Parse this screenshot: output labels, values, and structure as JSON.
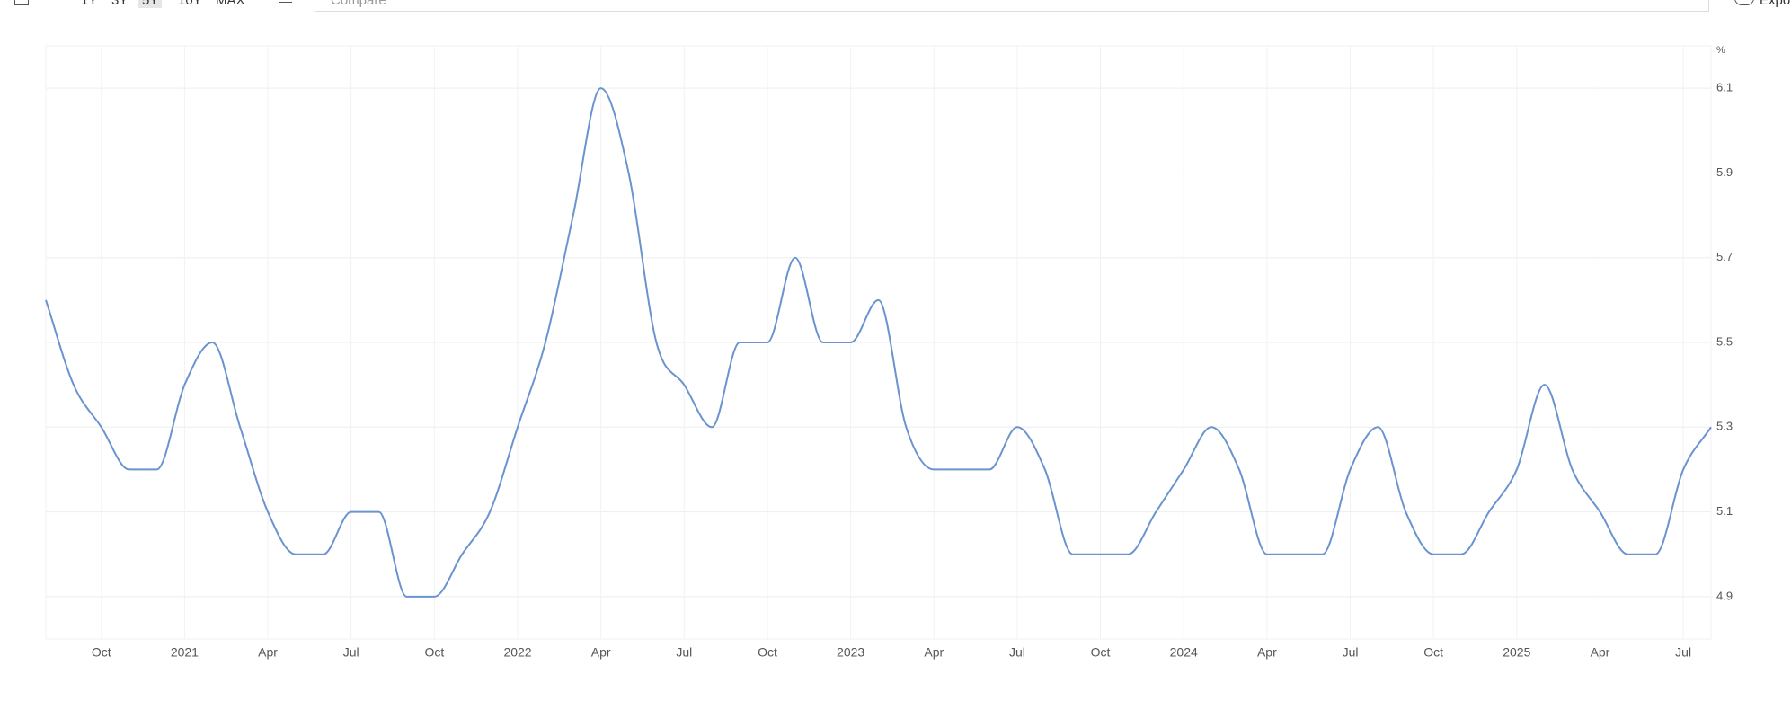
{
  "toolbar": {
    "ranges": [
      "1Y",
      "3Y",
      "5Y",
      "10Y",
      "MAX"
    ],
    "compare": "Compare",
    "export": "Export"
  },
  "chart_data": {
    "type": "line",
    "y_unit": "%",
    "categories": [
      null,
      null,
      "Oct",
      null,
      null,
      "2021",
      null,
      null,
      "Apr",
      null,
      null,
      "Jul",
      null,
      null,
      "Oct",
      null,
      null,
      "2022",
      null,
      null,
      "Apr",
      null,
      null,
      "Jul",
      null,
      null,
      "Oct",
      null,
      null,
      "2023",
      null,
      null,
      "Apr",
      null,
      null,
      "Jul",
      null,
      null,
      "Oct",
      null,
      null,
      "2024",
      null,
      null,
      "Apr",
      null,
      null,
      "Jul",
      null,
      null,
      "Oct",
      null,
      null,
      "2025",
      null,
      null,
      "Apr",
      null,
      null,
      "Jul",
      null
    ],
    "series": [
      {
        "color": "#6a93cf",
        "values": [
          5.6,
          5.4,
          5.3,
          5.2,
          5.2,
          5.4,
          5.5,
          5.3,
          5.1,
          5.0,
          5.0,
          5.1,
          5.1,
          4.9,
          4.9,
          5.0,
          5.1,
          5.3,
          5.5,
          5.8,
          6.1,
          5.9,
          5.5,
          5.4,
          5.3,
          5.5,
          5.5,
          5.7,
          5.5,
          5.5,
          5.6,
          5.3,
          5.2,
          5.2,
          5.2,
          5.3,
          5.2,
          5.0,
          5.0,
          5.0,
          5.1,
          5.2,
          5.3,
          5.2,
          5.0,
          5.0,
          5.0,
          5.2,
          5.3,
          5.1,
          5.0,
          5.0,
          5.1,
          5.2,
          5.4,
          5.2,
          5.1,
          5.0,
          5.0,
          5.2,
          5.3
        ]
      }
    ],
    "ylim": [
      4.8,
      6.2
    ],
    "yticks": [
      4.9,
      5.1,
      5.3,
      5.5,
      5.7,
      5.9,
      6.1
    ],
    "grid": true
  }
}
